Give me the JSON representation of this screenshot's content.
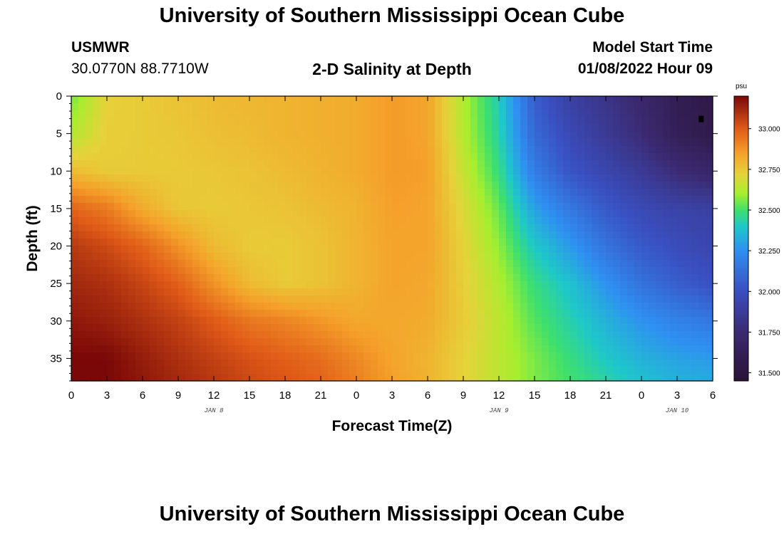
{
  "header": {
    "main_title": "University of Southern Mississippi Ocean Cube",
    "station_id": "USMWR",
    "station_coords": "30.0770N  88.7710W",
    "plot_title": "2-D Salinity at Depth",
    "start_label": "Model Start Time",
    "start_value": "01/08/2022 Hour 09"
  },
  "footer": {
    "title": "University of Southern Mississippi Ocean Cube"
  },
  "chart_data": {
    "type": "heatmap",
    "title": "2-D Salinity at Depth",
    "xlabel": "Forecast Time(Z)",
    "ylabel": "Depth (ft)",
    "x_unit": "hours since 2022-01-08 00Z",
    "xlim": [
      0,
      54
    ],
    "ylim": [
      0,
      38
    ],
    "y_inverted": true,
    "x_ticks": [
      {
        "v": 0,
        "label": "0"
      },
      {
        "v": 3,
        "label": "3"
      },
      {
        "v": 6,
        "label": "6"
      },
      {
        "v": 9,
        "label": "9"
      },
      {
        "v": 12,
        "label": "12"
      },
      {
        "v": 15,
        "label": "15"
      },
      {
        "v": 18,
        "label": "18"
      },
      {
        "v": 21,
        "label": "21"
      },
      {
        "v": 24,
        "label": "0"
      },
      {
        "v": 27,
        "label": "3"
      },
      {
        "v": 30,
        "label": "6"
      },
      {
        "v": 33,
        "label": "9"
      },
      {
        "v": 36,
        "label": "12"
      },
      {
        "v": 39,
        "label": "15"
      },
      {
        "v": 42,
        "label": "18"
      },
      {
        "v": 45,
        "label": "21"
      },
      {
        "v": 48,
        "label": "0"
      },
      {
        "v": 51,
        "label": "3"
      },
      {
        "v": 54,
        "label": "6"
      }
    ],
    "day_labels": [
      {
        "v": 12,
        "label": "JAN 8"
      },
      {
        "v": 36,
        "label": "JAN 9"
      },
      {
        "v": 51,
        "label": "JAN 10"
      }
    ],
    "y_ticks": [
      {
        "v": 0,
        "label": "0"
      },
      {
        "v": 5,
        "label": "5"
      },
      {
        "v": 10,
        "label": "10"
      },
      {
        "v": 15,
        "label": "15"
      },
      {
        "v": 20,
        "label": "20"
      },
      {
        "v": 25,
        "label": "25"
      },
      {
        "v": 30,
        "label": "30"
      },
      {
        "v": 35,
        "label": "35"
      }
    ],
    "colorbar": {
      "unit": "psu",
      "min": 31.45,
      "max": 33.2,
      "ticks": [
        {
          "v": 33.0,
          "label": "33.000"
        },
        {
          "v": 32.75,
          "label": "32.750"
        },
        {
          "v": 32.5,
          "label": "32.500"
        },
        {
          "v": 32.25,
          "label": "32.250"
        },
        {
          "v": 32.0,
          "label": "32.000"
        },
        {
          "v": 31.75,
          "label": "31.750"
        },
        {
          "v": 31.5,
          "label": "31.500"
        }
      ],
      "colormap": [
        {
          "v": 31.45,
          "c": "#2a1235"
        },
        {
          "v": 31.75,
          "c": "#3b2a72"
        },
        {
          "v": 32.0,
          "c": "#3a4fc0"
        },
        {
          "v": 32.25,
          "c": "#2f8ff2"
        },
        {
          "v": 32.4,
          "c": "#1ec8c8"
        },
        {
          "v": 32.5,
          "c": "#3fe06a"
        },
        {
          "v": 32.6,
          "c": "#a6ee2e"
        },
        {
          "v": 32.72,
          "c": "#e6d23a"
        },
        {
          "v": 32.85,
          "c": "#f5a02a"
        },
        {
          "v": 33.0,
          "c": "#e05a18"
        },
        {
          "v": 33.2,
          "c": "#7a0808"
        }
      ]
    },
    "x_grid": [
      0,
      3,
      6,
      9,
      12,
      15,
      18,
      21,
      24,
      27,
      30,
      33,
      36,
      39,
      42,
      45,
      48,
      51,
      54
    ],
    "y_grid": [
      0,
      5,
      10,
      15,
      20,
      25,
      30,
      35,
      38
    ],
    "z_psu": [
      [
        32.55,
        32.72,
        32.74,
        32.76,
        32.78,
        32.79,
        32.8,
        32.81,
        32.82,
        32.86,
        32.84,
        32.62,
        32.42,
        32.06,
        31.9,
        31.82,
        31.72,
        31.6,
        31.55
      ],
      [
        32.62,
        32.73,
        32.74,
        32.75,
        32.77,
        32.78,
        32.8,
        32.81,
        32.82,
        32.86,
        32.84,
        32.63,
        32.44,
        32.1,
        31.96,
        31.86,
        31.76,
        31.62,
        31.56
      ],
      [
        32.78,
        32.74,
        32.74,
        32.74,
        32.75,
        32.76,
        32.78,
        32.8,
        32.82,
        32.86,
        32.85,
        32.66,
        32.48,
        32.18,
        32.02,
        31.94,
        31.86,
        31.76,
        31.7
      ],
      [
        32.98,
        32.93,
        32.82,
        32.75,
        32.74,
        32.75,
        32.76,
        32.78,
        32.8,
        32.85,
        32.84,
        32.7,
        32.54,
        32.3,
        32.16,
        32.04,
        31.96,
        31.92,
        31.9
      ],
      [
        33.08,
        33.04,
        32.98,
        32.88,
        32.78,
        32.74,
        32.74,
        32.76,
        32.8,
        32.84,
        32.84,
        32.72,
        32.58,
        32.4,
        32.28,
        32.14,
        32.04,
        31.98,
        31.94
      ],
      [
        33.12,
        33.1,
        33.05,
        32.99,
        32.88,
        32.78,
        32.74,
        32.76,
        32.8,
        32.84,
        32.83,
        32.73,
        32.62,
        32.48,
        32.38,
        32.26,
        32.14,
        32.06,
        32.0
      ],
      [
        33.16,
        33.14,
        33.1,
        33.06,
        33.0,
        32.94,
        32.91,
        32.87,
        32.83,
        32.83,
        32.82,
        32.74,
        32.64,
        32.52,
        32.43,
        32.34,
        32.26,
        32.2,
        32.16
      ],
      [
        33.2,
        33.2,
        33.15,
        33.1,
        33.06,
        33.02,
        32.99,
        32.96,
        32.9,
        32.84,
        32.8,
        32.72,
        32.64,
        32.56,
        32.48,
        32.4,
        32.34,
        32.3,
        32.28
      ],
      [
        33.2,
        33.2,
        33.16,
        33.12,
        33.08,
        33.04,
        33.01,
        32.98,
        32.92,
        32.85,
        32.8,
        32.72,
        32.64,
        32.56,
        32.5,
        32.44,
        32.38,
        32.34,
        32.32
      ]
    ],
    "marker": {
      "x": 53,
      "y": 3,
      "label": ""
    }
  }
}
